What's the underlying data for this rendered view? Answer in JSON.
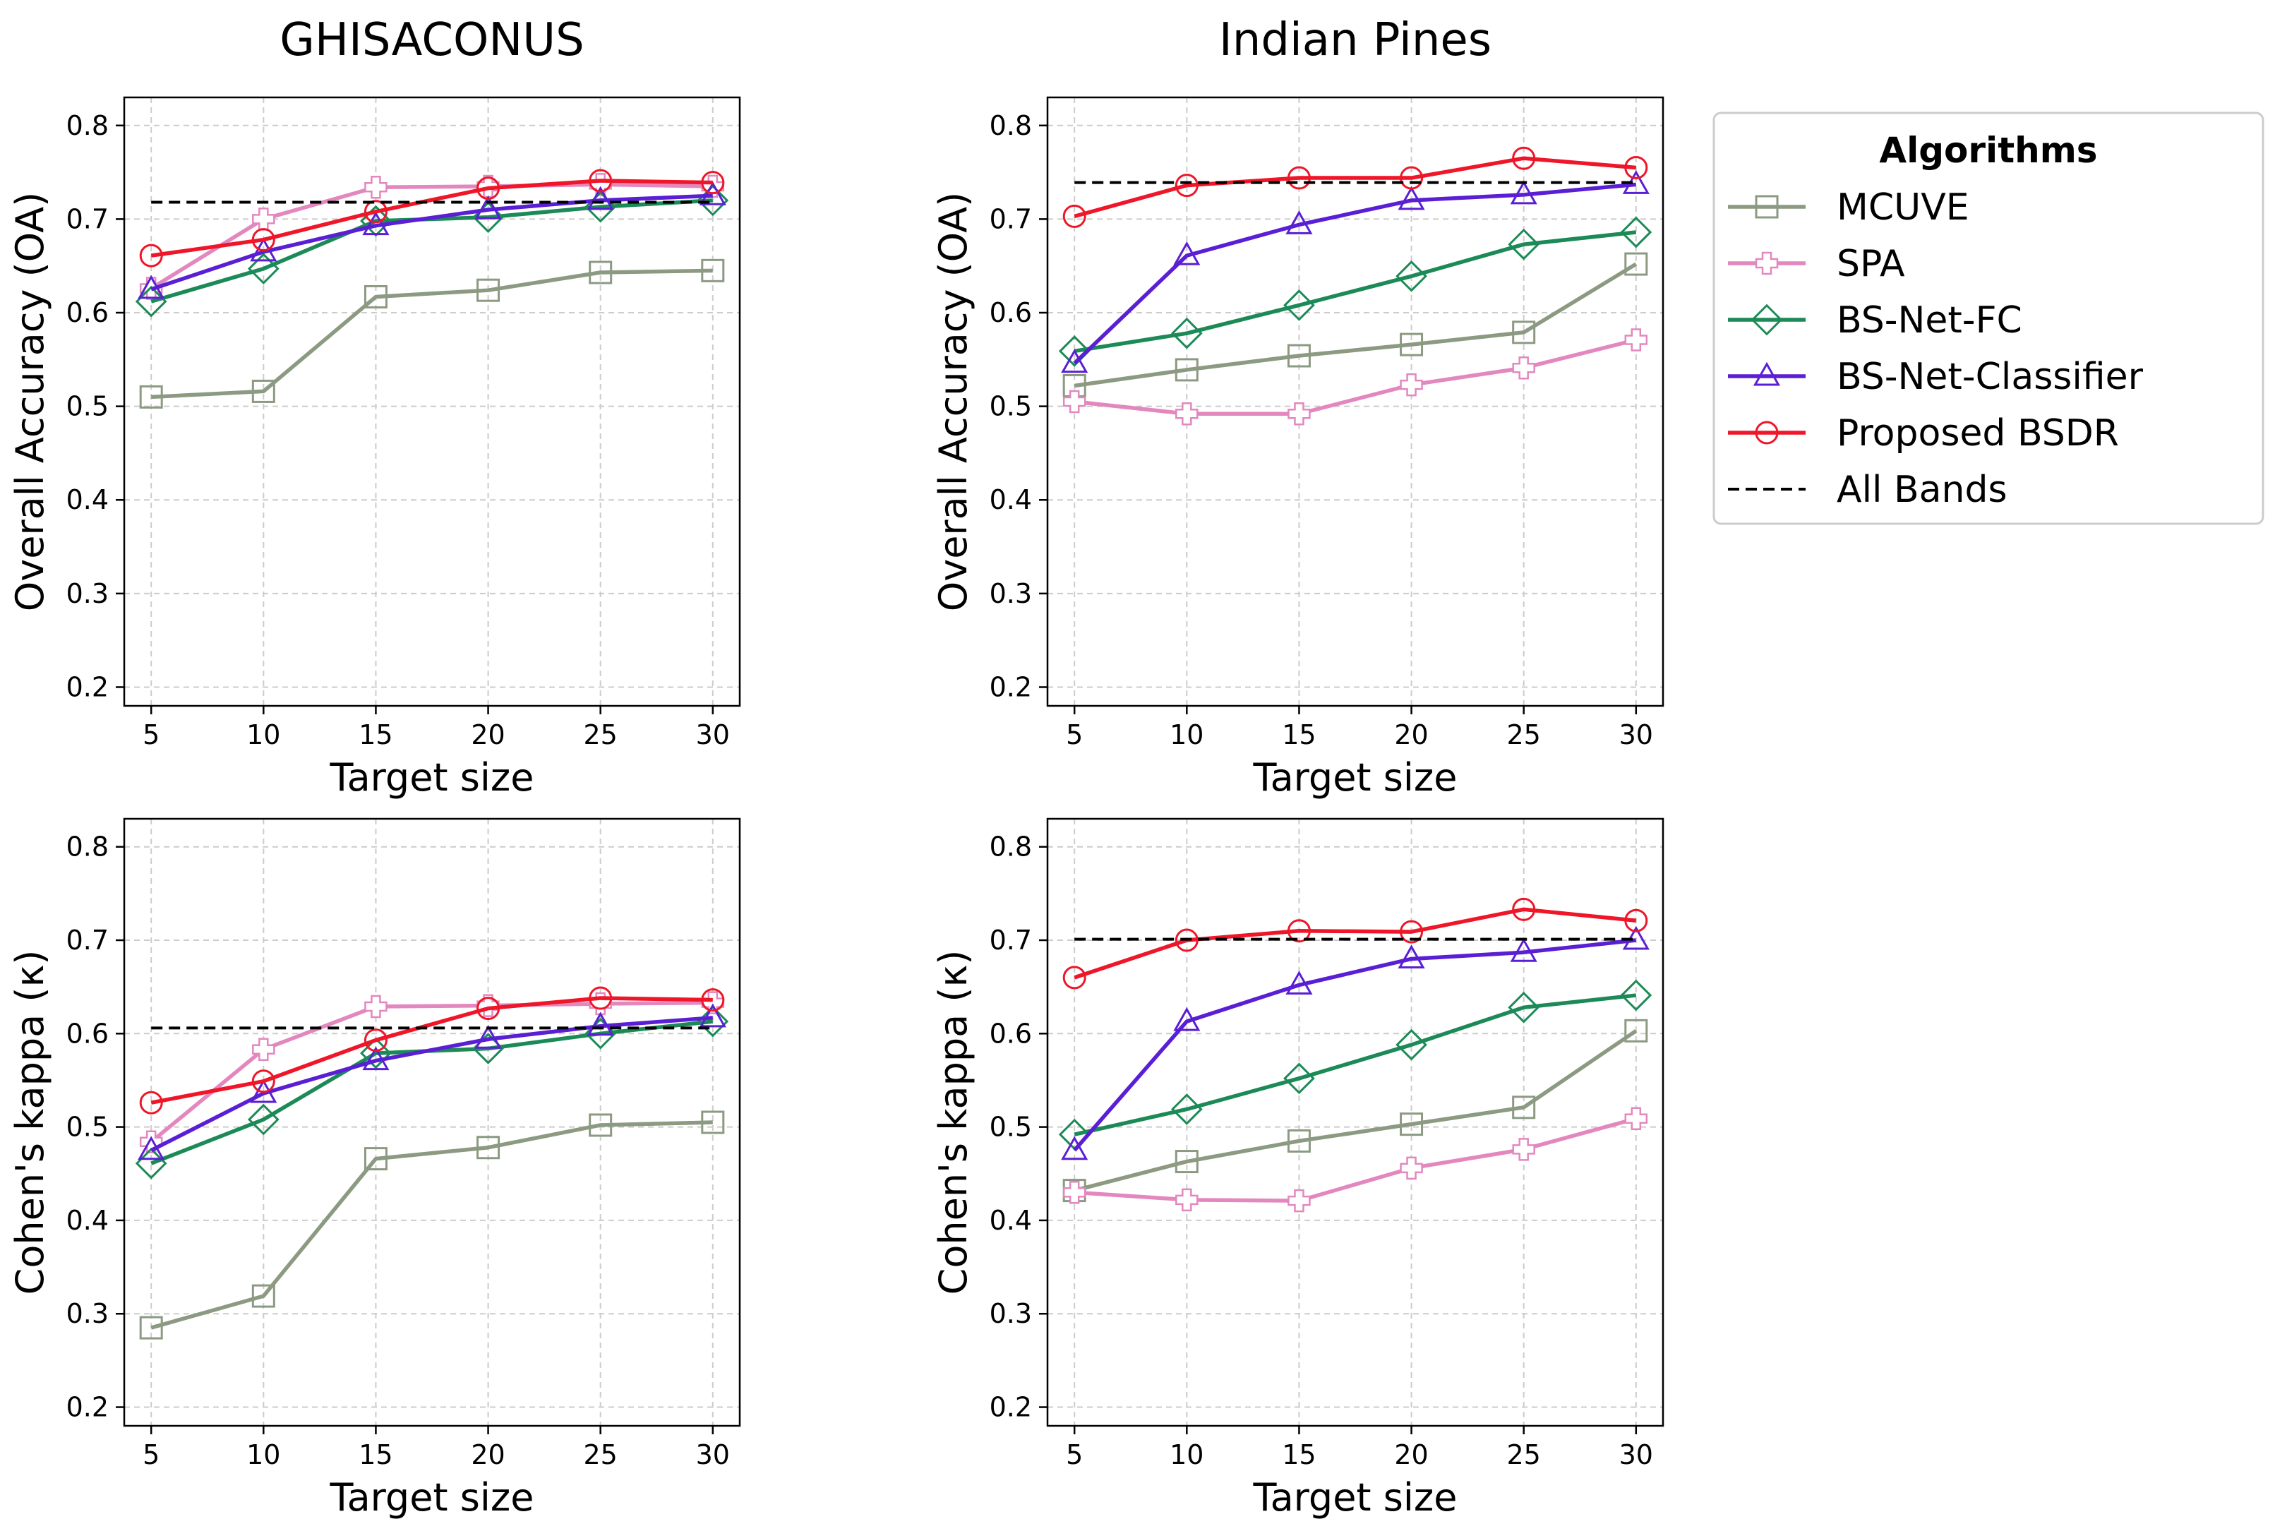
{
  "figure": {
    "column_titles": [
      "GHISACONUS",
      "Indian Pines"
    ],
    "legend": {
      "title": "Algorithms",
      "entries": [
        {
          "label": "MCUVE",
          "color": "#8c9a82",
          "marker": "square"
        },
        {
          "label": "SPA",
          "color": "#e387bf",
          "marker": "plus"
        },
        {
          "label": "BS-Net-FC",
          "color": "#1c8a57",
          "marker": "diamond"
        },
        {
          "label": "BS-Net-Classifier",
          "color": "#5a1fd4",
          "marker": "triangle"
        },
        {
          "label": "Proposed BSDR",
          "color": "#ee1628",
          "marker": "circle"
        },
        {
          "label": "All Bands",
          "color": "#000000",
          "marker": "dashed"
        }
      ]
    }
  },
  "chart_data": [
    {
      "type": "line",
      "dataset": "GHISACONUS",
      "title": "GHISACONUS",
      "xlabel": "Target size",
      "ylabel": "Overall Accuracy (OA)",
      "x": [
        5,
        10,
        15,
        20,
        25,
        30
      ],
      "xticks": [
        "5",
        "10",
        "15",
        "20",
        "25",
        "30"
      ],
      "yticks": [
        "0.2",
        "0.3",
        "0.4",
        "0.5",
        "0.6",
        "0.7",
        "0.8"
      ],
      "xlim": [
        3.8,
        31.2
      ],
      "ylim": [
        0.18,
        0.83
      ],
      "grid": true,
      "series": [
        {
          "name": "MCUVE",
          "values": [
            0.51,
            0.516,
            0.617,
            0.624,
            0.643,
            0.645
          ]
        },
        {
          "name": "SPA",
          "values": [
            0.626,
            0.7,
            0.734,
            0.735,
            0.737,
            0.735
          ]
        },
        {
          "name": "BS-Net-FC",
          "values": [
            0.612,
            0.647,
            0.698,
            0.702,
            0.713,
            0.72
          ]
        },
        {
          "name": "BS-Net-Classifier",
          "values": [
            0.625,
            0.665,
            0.693,
            0.71,
            0.72,
            0.725
          ]
        },
        {
          "name": "Proposed BSDR",
          "values": [
            0.661,
            0.678,
            0.708,
            0.733,
            0.741,
            0.739
          ]
        },
        {
          "name": "All Bands",
          "values": [
            0.718,
            0.718,
            0.718,
            0.718,
            0.718,
            0.718
          ]
        }
      ]
    },
    {
      "type": "line",
      "dataset": "Indian Pines",
      "title": "Indian Pines",
      "xlabel": "Target size",
      "ylabel": "Overall Accuracy (OA)",
      "x": [
        5,
        10,
        15,
        20,
        25,
        30
      ],
      "xticks": [
        "5",
        "10",
        "15",
        "20",
        "25",
        "30"
      ],
      "yticks": [
        "0.2",
        "0.3",
        "0.4",
        "0.5",
        "0.6",
        "0.7",
        "0.8"
      ],
      "xlim": [
        3.8,
        31.2
      ],
      "ylim": [
        0.18,
        0.83
      ],
      "grid": true,
      "series": [
        {
          "name": "MCUVE",
          "values": [
            0.522,
            0.539,
            0.554,
            0.566,
            0.579,
            0.652
          ]
        },
        {
          "name": "SPA",
          "values": [
            0.505,
            0.492,
            0.492,
            0.523,
            0.541,
            0.571
          ]
        },
        {
          "name": "BS-Net-FC",
          "values": [
            0.559,
            0.578,
            0.608,
            0.639,
            0.673,
            0.686
          ]
        },
        {
          "name": "BS-Net-Classifier",
          "values": [
            0.546,
            0.661,
            0.694,
            0.72,
            0.726,
            0.737
          ]
        },
        {
          "name": "Proposed BSDR",
          "values": [
            0.703,
            0.736,
            0.744,
            0.744,
            0.765,
            0.755
          ]
        },
        {
          "name": "All Bands",
          "values": [
            0.739,
            0.739,
            0.739,
            0.739,
            0.739,
            0.739
          ]
        }
      ]
    },
    {
      "type": "line",
      "dataset": "GHISACONUS",
      "title": "",
      "xlabel": "Target size",
      "ylabel": "Cohen's kappa (κ)",
      "x": [
        5,
        10,
        15,
        20,
        25,
        30
      ],
      "xticks": [
        "5",
        "10",
        "15",
        "20",
        "25",
        "30"
      ],
      "yticks": [
        "0.2",
        "0.3",
        "0.4",
        "0.5",
        "0.6",
        "0.7",
        "0.8"
      ],
      "xlim": [
        3.8,
        31.2
      ],
      "ylim": [
        0.18,
        0.83
      ],
      "grid": true,
      "series": [
        {
          "name": "MCUVE",
          "values": [
            0.285,
            0.319,
            0.466,
            0.478,
            0.502,
            0.505
          ]
        },
        {
          "name": "SPA",
          "values": [
            0.484,
            0.583,
            0.629,
            0.63,
            0.632,
            0.633
          ]
        },
        {
          "name": "BS-Net-FC",
          "values": [
            0.461,
            0.508,
            0.579,
            0.584,
            0.6,
            0.613
          ]
        },
        {
          "name": "BS-Net-Classifier",
          "values": [
            0.475,
            0.536,
            0.571,
            0.594,
            0.608,
            0.617
          ]
        },
        {
          "name": "Proposed BSDR",
          "values": [
            0.526,
            0.549,
            0.593,
            0.627,
            0.638,
            0.636
          ]
        },
        {
          "name": "All Bands",
          "values": [
            0.606,
            0.606,
            0.606,
            0.606,
            0.606,
            0.606
          ]
        }
      ]
    },
    {
      "type": "line",
      "dataset": "Indian Pines",
      "title": "",
      "xlabel": "Target size",
      "ylabel": "Cohen's kappa (κ)",
      "x": [
        5,
        10,
        15,
        20,
        25,
        30
      ],
      "xticks": [
        "5",
        "10",
        "15",
        "20",
        "25",
        "30"
      ],
      "yticks": [
        "0.2",
        "0.3",
        "0.4",
        "0.5",
        "0.6",
        "0.7",
        "0.8"
      ],
      "xlim": [
        3.8,
        31.2
      ],
      "ylim": [
        0.18,
        0.83
      ],
      "grid": true,
      "series": [
        {
          "name": "MCUVE",
          "values": [
            0.432,
            0.463,
            0.485,
            0.503,
            0.521,
            0.603
          ]
        },
        {
          "name": "SPA",
          "values": [
            0.43,
            0.422,
            0.421,
            0.456,
            0.476,
            0.509
          ]
        },
        {
          "name": "BS-Net-FC",
          "values": [
            0.492,
            0.519,
            0.552,
            0.588,
            0.628,
            0.641
          ]
        },
        {
          "name": "BS-Net-Classifier",
          "values": [
            0.475,
            0.613,
            0.652,
            0.68,
            0.687,
            0.7
          ]
        },
        {
          "name": "Proposed BSDR",
          "values": [
            0.66,
            0.7,
            0.71,
            0.709,
            0.733,
            0.721
          ]
        },
        {
          "name": "All Bands",
          "values": [
            0.701,
            0.701,
            0.701,
            0.701,
            0.701,
            0.701
          ]
        }
      ]
    }
  ]
}
